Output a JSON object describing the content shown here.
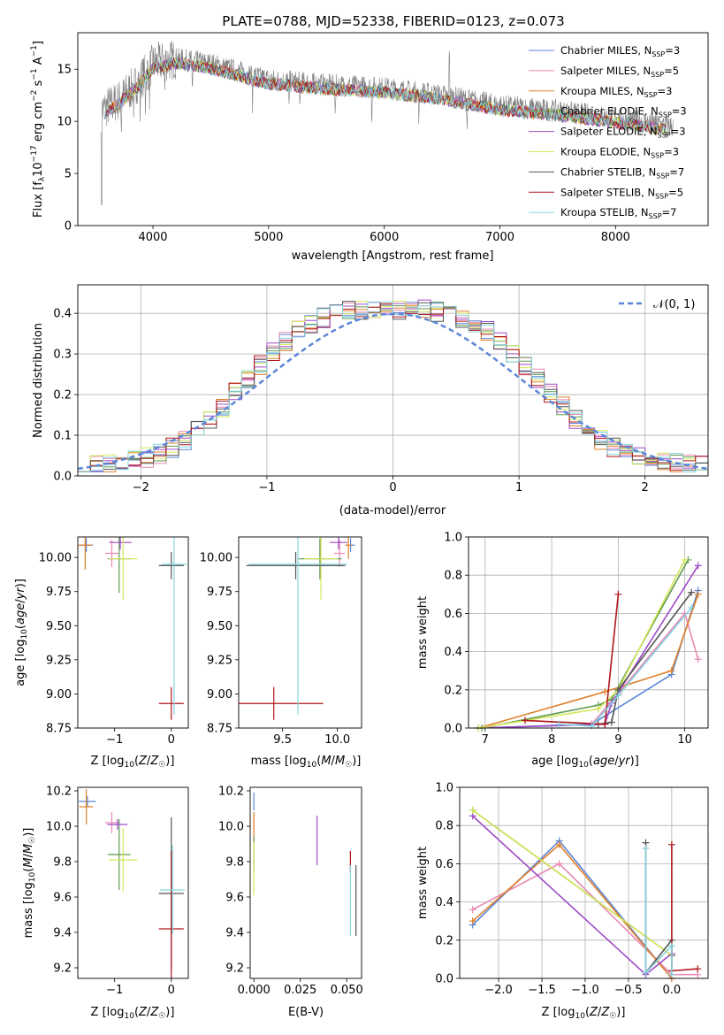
{
  "figure_title": "PLATE=0788, MJD=52338, FIBERID=0123, z=0.073",
  "models": [
    {
      "name": "Chabrier MILES",
      "nssp": "3",
      "color": "#5a86d8"
    },
    {
      "name": "Salpeter MILES",
      "nssp": "5",
      "color": "#e889b4"
    },
    {
      "name": "Kroupa MILES",
      "nssp": "3",
      "color": "#e0802a"
    },
    {
      "name": "Chabrier ELODIE",
      "nssp": "3",
      "color": "#5f9a4f"
    },
    {
      "name": "Salpeter ELODIE",
      "nssp": "3",
      "color": "#a04bc8"
    },
    {
      "name": "Kroupa ELODIE",
      "nssp": "3",
      "color": "#d6e65a"
    },
    {
      "name": "Chabrier STELIB",
      "nssp": "7",
      "color": "#555555"
    },
    {
      "name": "Salpeter STELIB",
      "nssp": "5",
      "color": "#b0161a"
    },
    {
      "name": "Kroupa STELIB",
      "nssp": "7",
      "color": "#86d3e0"
    }
  ],
  "chart_data": [
    {
      "id": "spectrum",
      "type": "line",
      "title": "PLATE=0788, MJD=52338, FIBERID=0123, z=0.073",
      "xlabel": "wavelength [Angstrom, rest frame]",
      "ylabel": "Flux [f_λ 10^-17 erg cm^-2 s^-1 A^-1]",
      "xlim": [
        3350,
        8800
      ],
      "ylim": [
        0,
        18.5
      ],
      "xticks": [
        4000,
        5000,
        6000,
        7000,
        8000
      ],
      "yticks": [
        0,
        5,
        10,
        15
      ],
      "grid": false,
      "legend": "top-right",
      "data_color": "#808080",
      "continuum": [
        [
          3550,
          11
        ],
        [
          3700,
          12
        ],
        [
          3850,
          13.5
        ],
        [
          4000,
          15.5
        ],
        [
          4200,
          16
        ],
        [
          4500,
          15.5
        ],
        [
          5000,
          14
        ],
        [
          5500,
          13.5
        ],
        [
          6000,
          13.2
        ],
        [
          6500,
          12.5
        ],
        [
          7000,
          11.5
        ],
        [
          7500,
          11
        ],
        [
          8000,
          10.3
        ],
        [
          8500,
          9.5
        ]
      ]
    },
    {
      "id": "residuals",
      "type": "histogram",
      "xlabel": "(data-model)/error",
      "ylabel": "Normed distribution",
      "xlim": [
        -2.5,
        2.5
      ],
      "ylim": [
        0,
        0.47
      ],
      "xticks": [
        -2,
        -1,
        0,
        1,
        2
      ],
      "yticks": [
        0.0,
        0.1,
        0.2,
        0.3,
        0.4
      ],
      "grid": true,
      "legend": "top-right",
      "reference_label": "𝒩(0, 1)",
      "reference_color": "#5a86d8",
      "bin_width": 0.1
    },
    {
      "id": "age-vs-metallicity",
      "type": "errorbar",
      "xlabel": "Z [log10(Z/Z☉)]",
      "ylabel": "age [log10(age/yr)]",
      "xlim": [
        -1.65,
        0.3
      ],
      "ylim": [
        8.75,
        10.15
      ],
      "xticks": [
        -1,
        0
      ],
      "yticks": [
        8.75,
        9.0,
        9.25,
        9.5,
        9.75,
        10.0
      ],
      "points": [
        {
          "model": 0,
          "x": -1.5,
          "y": 10.09,
          "xerr": 0.12,
          "yerr": 0.05
        },
        {
          "model": 1,
          "x": -1.05,
          "y": 10.03,
          "xerr": 0.12,
          "yerr": 0.1
        },
        {
          "model": 2,
          "x": -1.52,
          "y": 10.09,
          "xerr": 0.12,
          "yerr": 0.18
        },
        {
          "model": 3,
          "x": -0.92,
          "y": 9.99,
          "xerr": 0.2,
          "yerr": 0.25
        },
        {
          "model": 4,
          "x": -0.9,
          "y": 10.11,
          "xerr": 0.2,
          "yerr": 0.05
        },
        {
          "model": 5,
          "x": -0.85,
          "y": 9.99,
          "xerr": 0.25,
          "yerr": 0.3
        },
        {
          "model": 6,
          "x": 0.0,
          "y": 9.94,
          "xerr": 0.22,
          "yerr": 0.1
        },
        {
          "model": 7,
          "x": 0.0,
          "y": 8.93,
          "xerr": 0.22,
          "yerr": 0.12
        },
        {
          "model": 8,
          "x": 0.05,
          "y": 9.95,
          "xerr": 0.22,
          "yerr": 1.1
        }
      ]
    },
    {
      "id": "age-vs-mass",
      "type": "errorbar",
      "xlabel": "mass [log10(M/M☉)]",
      "ylabel": "",
      "xlim": [
        9.1,
        10.22
      ],
      "ylim": [
        8.75,
        10.15
      ],
      "xticks": [
        9.5,
        10.0
      ],
      "yticks": [
        8.75,
        9.0,
        9.25,
        9.5,
        9.75,
        10.0
      ],
      "points": [
        {
          "model": 0,
          "x": 10.12,
          "y": 10.09,
          "xerr": 0.04,
          "yerr": 0.05
        },
        {
          "model": 1,
          "x": 10.02,
          "y": 10.03,
          "xerr": 0.05,
          "yerr": 0.1
        },
        {
          "model": 2,
          "x": 10.1,
          "y": 10.09,
          "xerr": 0.03,
          "yerr": 0.1
        },
        {
          "model": 3,
          "x": 9.84,
          "y": 9.99,
          "xerr": 0.2,
          "yerr": 0.15
        },
        {
          "model": 4,
          "x": 10.01,
          "y": 10.11,
          "xerr": 0.08,
          "yerr": 0.05
        },
        {
          "model": 5,
          "x": 9.85,
          "y": 9.99,
          "xerr": 0.15,
          "yerr": 0.3
        },
        {
          "model": 6,
          "x": 9.62,
          "y": 9.94,
          "xerr": 0.45,
          "yerr": 0.1
        },
        {
          "model": 7,
          "x": 9.42,
          "y": 8.93,
          "xerr": 0.45,
          "yerr": 0.12
        },
        {
          "model": 8,
          "x": 9.64,
          "y": 9.95,
          "xerr": 0.45,
          "yerr": 1.1
        }
      ]
    },
    {
      "id": "weight-vs-age",
      "type": "line",
      "xlabel": "age [log10(age/yr)]",
      "ylabel": "mass weight",
      "xlim": [
        6.75,
        10.35
      ],
      "ylim": [
        0,
        1.0
      ],
      "xticks": [
        7,
        8,
        9,
        10
      ],
      "yticks": [
        0.0,
        0.2,
        0.4,
        0.6,
        0.8,
        1.0
      ],
      "grid": true,
      "series": [
        {
          "model": 0,
          "x": [
            6.9,
            8.6,
            9.8,
            10.2
          ],
          "y": [
            0.0,
            0.02,
            0.28,
            0.72
          ]
        },
        {
          "model": 1,
          "x": [
            8.6,
            9.0,
            10.0,
            10.2
          ],
          "y": [
            0.02,
            0.18,
            0.6,
            0.36
          ]
        },
        {
          "model": 2,
          "x": [
            6.9,
            8.8,
            9.8,
            10.2
          ],
          "y": [
            0.0,
            0.19,
            0.3,
            0.7
          ]
        },
        {
          "model": 3,
          "x": [
            6.95,
            8.7,
            8.9,
            10.05
          ],
          "y": [
            0.0,
            0.12,
            0.15,
            0.88
          ]
        },
        {
          "model": 4,
          "x": [
            6.9,
            8.8,
            8.9,
            10.2
          ],
          "y": [
            0.0,
            0.02,
            0.13,
            0.85
          ]
        },
        {
          "model": 5,
          "x": [
            6.9,
            8.7,
            9.0,
            10.0
          ],
          "y": [
            0.0,
            0.1,
            0.2,
            0.88
          ]
        },
        {
          "model": 6,
          "x": [
            8.7,
            8.9,
            9.0,
            10.1
          ],
          "y": [
            0.02,
            0.03,
            0.2,
            0.71
          ]
        },
        {
          "model": 7,
          "x": [
            7.6,
            8.8,
            9.0
          ],
          "y": [
            0.04,
            0.02,
            0.7
          ]
        },
        {
          "model": 8,
          "x": [
            8.1,
            8.6,
            9.0,
            10.1
          ],
          "y": [
            0.02,
            0.01,
            0.17,
            0.63
          ]
        }
      ]
    },
    {
      "id": "mass-vs-metallicity",
      "type": "errorbar",
      "xlabel": "Z [log10(Z/Z☉)]",
      "ylabel": "mass [log10(M/M☉)]",
      "xlim": [
        -1.65,
        0.3
      ],
      "ylim": [
        9.14,
        10.22
      ],
      "xticks": [
        -1,
        0
      ],
      "yticks": [
        9.2,
        9.4,
        9.6,
        9.8,
        10.0,
        10.2
      ],
      "points": [
        {
          "model": 0,
          "x": -1.48,
          "y": 10.14,
          "xerr": 0.15,
          "yerr": 0.03
        },
        {
          "model": 1,
          "x": -1.05,
          "y": 10.02,
          "xerr": 0.12,
          "yerr": 0.06
        },
        {
          "model": 2,
          "x": -1.5,
          "y": 10.11,
          "xerr": 0.12,
          "yerr": 0.1
        },
        {
          "model": 3,
          "x": -0.92,
          "y": 9.84,
          "xerr": 0.2,
          "yerr": 0.2
        },
        {
          "model": 4,
          "x": -0.95,
          "y": 10.01,
          "xerr": 0.18,
          "yerr": 0.03
        },
        {
          "model": 5,
          "x": -0.85,
          "y": 9.81,
          "xerr": 0.25,
          "yerr": 0.18
        },
        {
          "model": 6,
          "x": 0.0,
          "y": 9.62,
          "xerr": 0.22,
          "yerr": 0.43
        },
        {
          "model": 7,
          "x": 0.0,
          "y": 9.42,
          "xerr": 0.22,
          "yerr": 0.44
        },
        {
          "model": 8,
          "x": 0.02,
          "y": 9.64,
          "xerr": 0.22,
          "yerr": 0.25
        }
      ]
    },
    {
      "id": "mass-vs-extinction",
      "type": "errorbar",
      "xlabel": "E(B-V)",
      "ylabel": "",
      "xlim": [
        -0.002,
        0.058
      ],
      "ylim": [
        9.14,
        10.22
      ],
      "xticks": [
        0.0,
        0.025,
        0.05
      ],
      "yticks": [
        9.2,
        9.4,
        9.6,
        9.8,
        10.0,
        10.2
      ],
      "points": [
        {
          "model": 0,
          "x": 0.0,
          "y": 10.14,
          "xerr": 0,
          "yerr": 0.05
        },
        {
          "model": 1,
          "x": 0.0,
          "y": 10.02,
          "xerr": 0,
          "yerr": 0.05
        },
        {
          "model": 2,
          "x": 0.0,
          "y": 10.0,
          "xerr": 0,
          "yerr": 0.08
        },
        {
          "model": 3,
          "x": 0.0,
          "y": 9.84,
          "xerr": 0,
          "yerr": 0.1
        },
        {
          "model": 4,
          "x": 0.034,
          "y": 9.92,
          "xerr": 0,
          "yerr": 0.14
        },
        {
          "model": 5,
          "x": 0.0,
          "y": 9.76,
          "xerr": 0,
          "yerr": 0.15
        },
        {
          "model": 6,
          "x": 0.055,
          "y": 9.58,
          "xerr": 0,
          "yerr": 0.2
        },
        {
          "model": 7,
          "x": 0.052,
          "y": 9.8,
          "xerr": 0,
          "yerr": 0.06
        },
        {
          "model": 8,
          "x": 0.052,
          "y": 9.58,
          "xerr": 0,
          "yerr": 0.2
        }
      ]
    },
    {
      "id": "weight-vs-metallicity",
      "type": "line",
      "xlabel": "Z [log10(Z/Z☉)]",
      "ylabel": "mass weight",
      "xlim": [
        -2.45,
        0.42
      ],
      "ylim": [
        0,
        1.0
      ],
      "xticks": [
        -2.0,
        -1.5,
        -1.0,
        -0.5,
        0.0
      ],
      "yticks": [
        0.0,
        0.2,
        0.4,
        0.6,
        0.8,
        1.0
      ],
      "grid": true,
      "series": [
        {
          "model": 0,
          "x": [
            -2.3,
            -1.3,
            0.0
          ],
          "y": [
            0.28,
            0.72,
            0.0
          ]
        },
        {
          "model": 1,
          "x": [
            -2.3,
            -1.3,
            0.0,
            0.3
          ],
          "y": [
            0.36,
            0.6,
            0.02,
            0.02
          ]
        },
        {
          "model": 2,
          "x": [
            -2.3,
            -1.3,
            0.0
          ],
          "y": [
            0.3,
            0.7,
            0.0
          ]
        },
        {
          "model": 3,
          "x": [
            -2.3,
            0.0
          ],
          "y": [
            0.88,
            0.12
          ]
        },
        {
          "model": 4,
          "x": [
            -2.3,
            -0.3,
            0.0
          ],
          "y": [
            0.85,
            0.02,
            0.13
          ]
        },
        {
          "model": 5,
          "x": [
            -2.3,
            0.0
          ],
          "y": [
            0.88,
            0.12
          ]
        },
        {
          "model": 6,
          "x": [
            -0.3,
            -0.3,
            0.0,
            0.0
          ],
          "y": [
            0.71,
            0.03,
            0.2,
            0.12
          ]
        },
        {
          "model": 7,
          "x": [
            0.0,
            0.0,
            0.3
          ],
          "y": [
            0.7,
            0.04,
            0.05
          ]
        },
        {
          "model": 8,
          "x": [
            -0.3,
            -0.3,
            0.0,
            0.0
          ],
          "y": [
            0.68,
            0.03,
            0.17,
            0.02
          ]
        }
      ]
    }
  ]
}
